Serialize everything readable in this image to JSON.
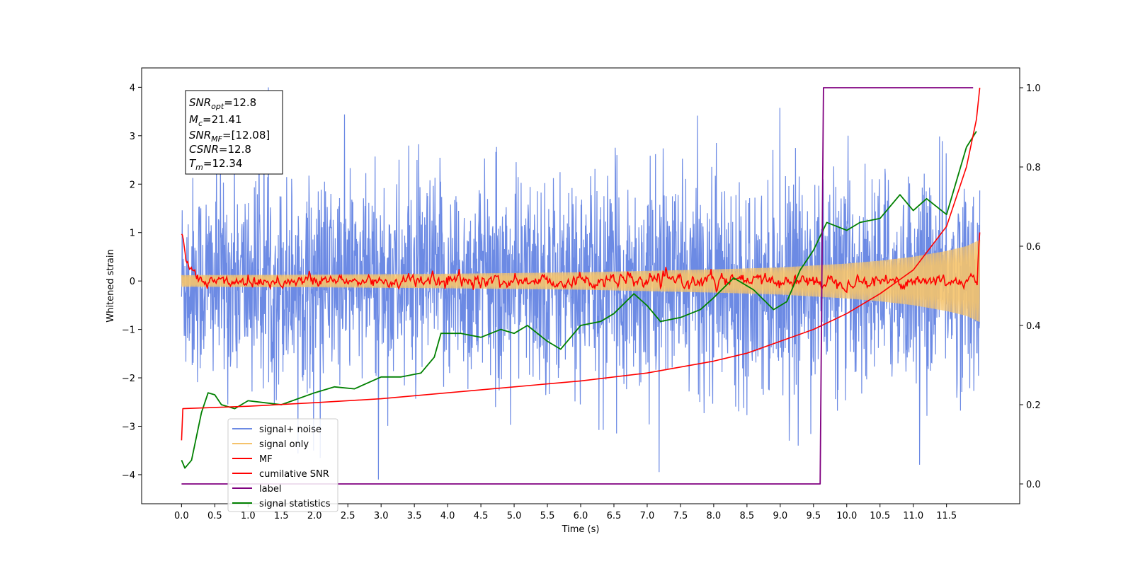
{
  "chart_data": {
    "type": "line",
    "xlabel": "Time (s)",
    "ylabel": "Whitened strain",
    "xlim": [
      -0.6,
      12.6
    ],
    "ylim": [
      -4.6,
      4.4
    ],
    "y2lim": [
      -0.05,
      1.05
    ],
    "x_ticks": [
      "0.0",
      "0.5",
      "1.0",
      "1.5",
      "2.0",
      "2.5",
      "3.0",
      "3.5",
      "4.0",
      "4.5",
      "5.0",
      "5.5",
      "6.0",
      "6.5",
      "7.0",
      "7.5",
      "8.0",
      "8.5",
      "9.0",
      "9.5",
      "10.0",
      "10.5",
      "11.0",
      "11.5"
    ],
    "y_ticks": [
      "4",
      "3",
      "2",
      "1",
      "0",
      "−1",
      "−2",
      "−3",
      "−4"
    ],
    "y2_ticks": [
      "1.0",
      "0.8",
      "0.6",
      "0.4",
      "0.2",
      "0.0"
    ],
    "grid": false,
    "legend_position": "bottom-left",
    "info_box": {
      "snr_opt": {
        "base": "SNR",
        "sub": "opt",
        "value": "=12.8"
      },
      "mc": {
        "base": "M",
        "sub": "c",
        "value": "=21.41"
      },
      "snr_mf": {
        "base": "SNR",
        "sub": "MF",
        "value": "=[12.08]"
      },
      "csnr": {
        "base": "CSNR",
        "sub": "",
        "value": "=12.8"
      },
      "tm": {
        "base": "T",
        "sub": "m",
        "value": "=12.34"
      }
    },
    "series": [
      {
        "name": "signal+ noise",
        "color": "#6c8ae4",
        "axis": "left",
        "description_values": "noise band roughly -2.5 to 2.7 with spikes to ±4",
        "t_range": [
          0,
          12.0
        ]
      },
      {
        "name": "signal only",
        "color": "#f5c36b",
        "axis": "left",
        "t_range": [
          0,
          12.0
        ],
        "envelope": {
          "t": [
            0,
            2,
            4,
            6,
            8,
            9,
            10,
            10.5,
            11,
            11.5,
            11.8,
            12.0
          ],
          "amp": [
            0.12,
            0.13,
            0.15,
            0.18,
            0.24,
            0.28,
            0.36,
            0.42,
            0.5,
            0.62,
            0.72,
            0.85
          ]
        }
      },
      {
        "name": "MF",
        "color": "#ff0000",
        "axis": "left",
        "t_range": [
          0,
          12.0
        ],
        "points": [
          [
            0.0,
            1.0
          ],
          [
            0.03,
            0.9
          ],
          [
            0.08,
            0.3
          ],
          [
            0.15,
            0.2
          ],
          [
            0.3,
            0.05
          ],
          [
            0.6,
            0.0
          ],
          [
            11.95,
            0.0
          ],
          [
            12.0,
            1.0
          ]
        ]
      },
      {
        "name": "cumilative SNR",
        "color": "#ff0000",
        "axis": "right",
        "points": [
          [
            0.0,
            0.11
          ],
          [
            0.02,
            0.19
          ],
          [
            1.0,
            0.196
          ],
          [
            2.0,
            0.205
          ],
          [
            3.0,
            0.215
          ],
          [
            4.0,
            0.23
          ],
          [
            5.0,
            0.245
          ],
          [
            6.0,
            0.26
          ],
          [
            7.0,
            0.28
          ],
          [
            8.0,
            0.31
          ],
          [
            8.5,
            0.33
          ],
          [
            9.0,
            0.36
          ],
          [
            9.5,
            0.39
          ],
          [
            10.0,
            0.43
          ],
          [
            10.5,
            0.48
          ],
          [
            11.0,
            0.54
          ],
          [
            11.5,
            0.65
          ],
          [
            11.8,
            0.8
          ],
          [
            11.95,
            0.92
          ],
          [
            12.0,
            1.0
          ]
        ]
      },
      {
        "name": "label",
        "color": "#800080",
        "axis": "right",
        "points": [
          [
            0.0,
            0.0
          ],
          [
            9.6,
            0.0
          ],
          [
            9.65,
            1.0
          ],
          [
            11.9,
            1.0
          ]
        ]
      },
      {
        "name": "signal statistics",
        "color": "#008000",
        "axis": "right",
        "points": [
          [
            0.0,
            0.06
          ],
          [
            0.05,
            0.04
          ],
          [
            0.15,
            0.06
          ],
          [
            0.3,
            0.18
          ],
          [
            0.4,
            0.23
          ],
          [
            0.5,
            0.225
          ],
          [
            0.6,
            0.2
          ],
          [
            0.8,
            0.19
          ],
          [
            1.0,
            0.21
          ],
          [
            1.5,
            0.2
          ],
          [
            2.0,
            0.23
          ],
          [
            2.3,
            0.245
          ],
          [
            2.6,
            0.24
          ],
          [
            3.0,
            0.27
          ],
          [
            3.3,
            0.27
          ],
          [
            3.6,
            0.28
          ],
          [
            3.8,
            0.32
          ],
          [
            3.9,
            0.38
          ],
          [
            4.2,
            0.38
          ],
          [
            4.5,
            0.37
          ],
          [
            4.8,
            0.39
          ],
          [
            5.0,
            0.38
          ],
          [
            5.2,
            0.4
          ],
          [
            5.5,
            0.36
          ],
          [
            5.7,
            0.34
          ],
          [
            6.0,
            0.4
          ],
          [
            6.3,
            0.41
          ],
          [
            6.5,
            0.43
          ],
          [
            6.8,
            0.48
          ],
          [
            7.0,
            0.45
          ],
          [
            7.2,
            0.41
          ],
          [
            7.5,
            0.42
          ],
          [
            7.8,
            0.44
          ],
          [
            8.0,
            0.47
          ],
          [
            8.3,
            0.52
          ],
          [
            8.6,
            0.49
          ],
          [
            8.9,
            0.44
          ],
          [
            9.1,
            0.46
          ],
          [
            9.3,
            0.54
          ],
          [
            9.5,
            0.59
          ],
          [
            9.7,
            0.66
          ],
          [
            10.0,
            0.64
          ],
          [
            10.2,
            0.66
          ],
          [
            10.5,
            0.67
          ],
          [
            10.8,
            0.73
          ],
          [
            11.0,
            0.69
          ],
          [
            11.2,
            0.72
          ],
          [
            11.5,
            0.68
          ],
          [
            11.8,
            0.85
          ],
          [
            11.95,
            0.89
          ]
        ]
      }
    ]
  }
}
